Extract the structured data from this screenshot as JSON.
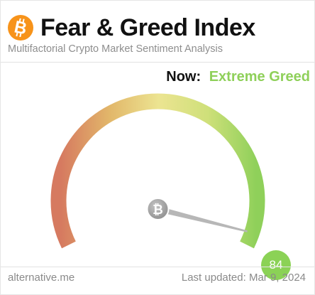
{
  "header": {
    "title": "Fear & Greed Index",
    "subtitle": "Multifactorial Crypto Market Sentiment Analysis",
    "logo_icon": "bitcoin-icon"
  },
  "current": {
    "now_label": "Now:",
    "classification": "Extreme Greed",
    "score": "84",
    "score_value": 84,
    "classification_color": "#8fd05a"
  },
  "gauge": {
    "min": 0,
    "max": 100,
    "colors": {
      "fear": "#d67a60",
      "neutral": "#ece491",
      "greed": "#8fd05a",
      "needle": "#b7b7b7",
      "hub": "#9a9a9a"
    }
  },
  "footer": {
    "source": "alternative.me",
    "last_updated": "Last updated: Mar 9, 2024"
  }
}
